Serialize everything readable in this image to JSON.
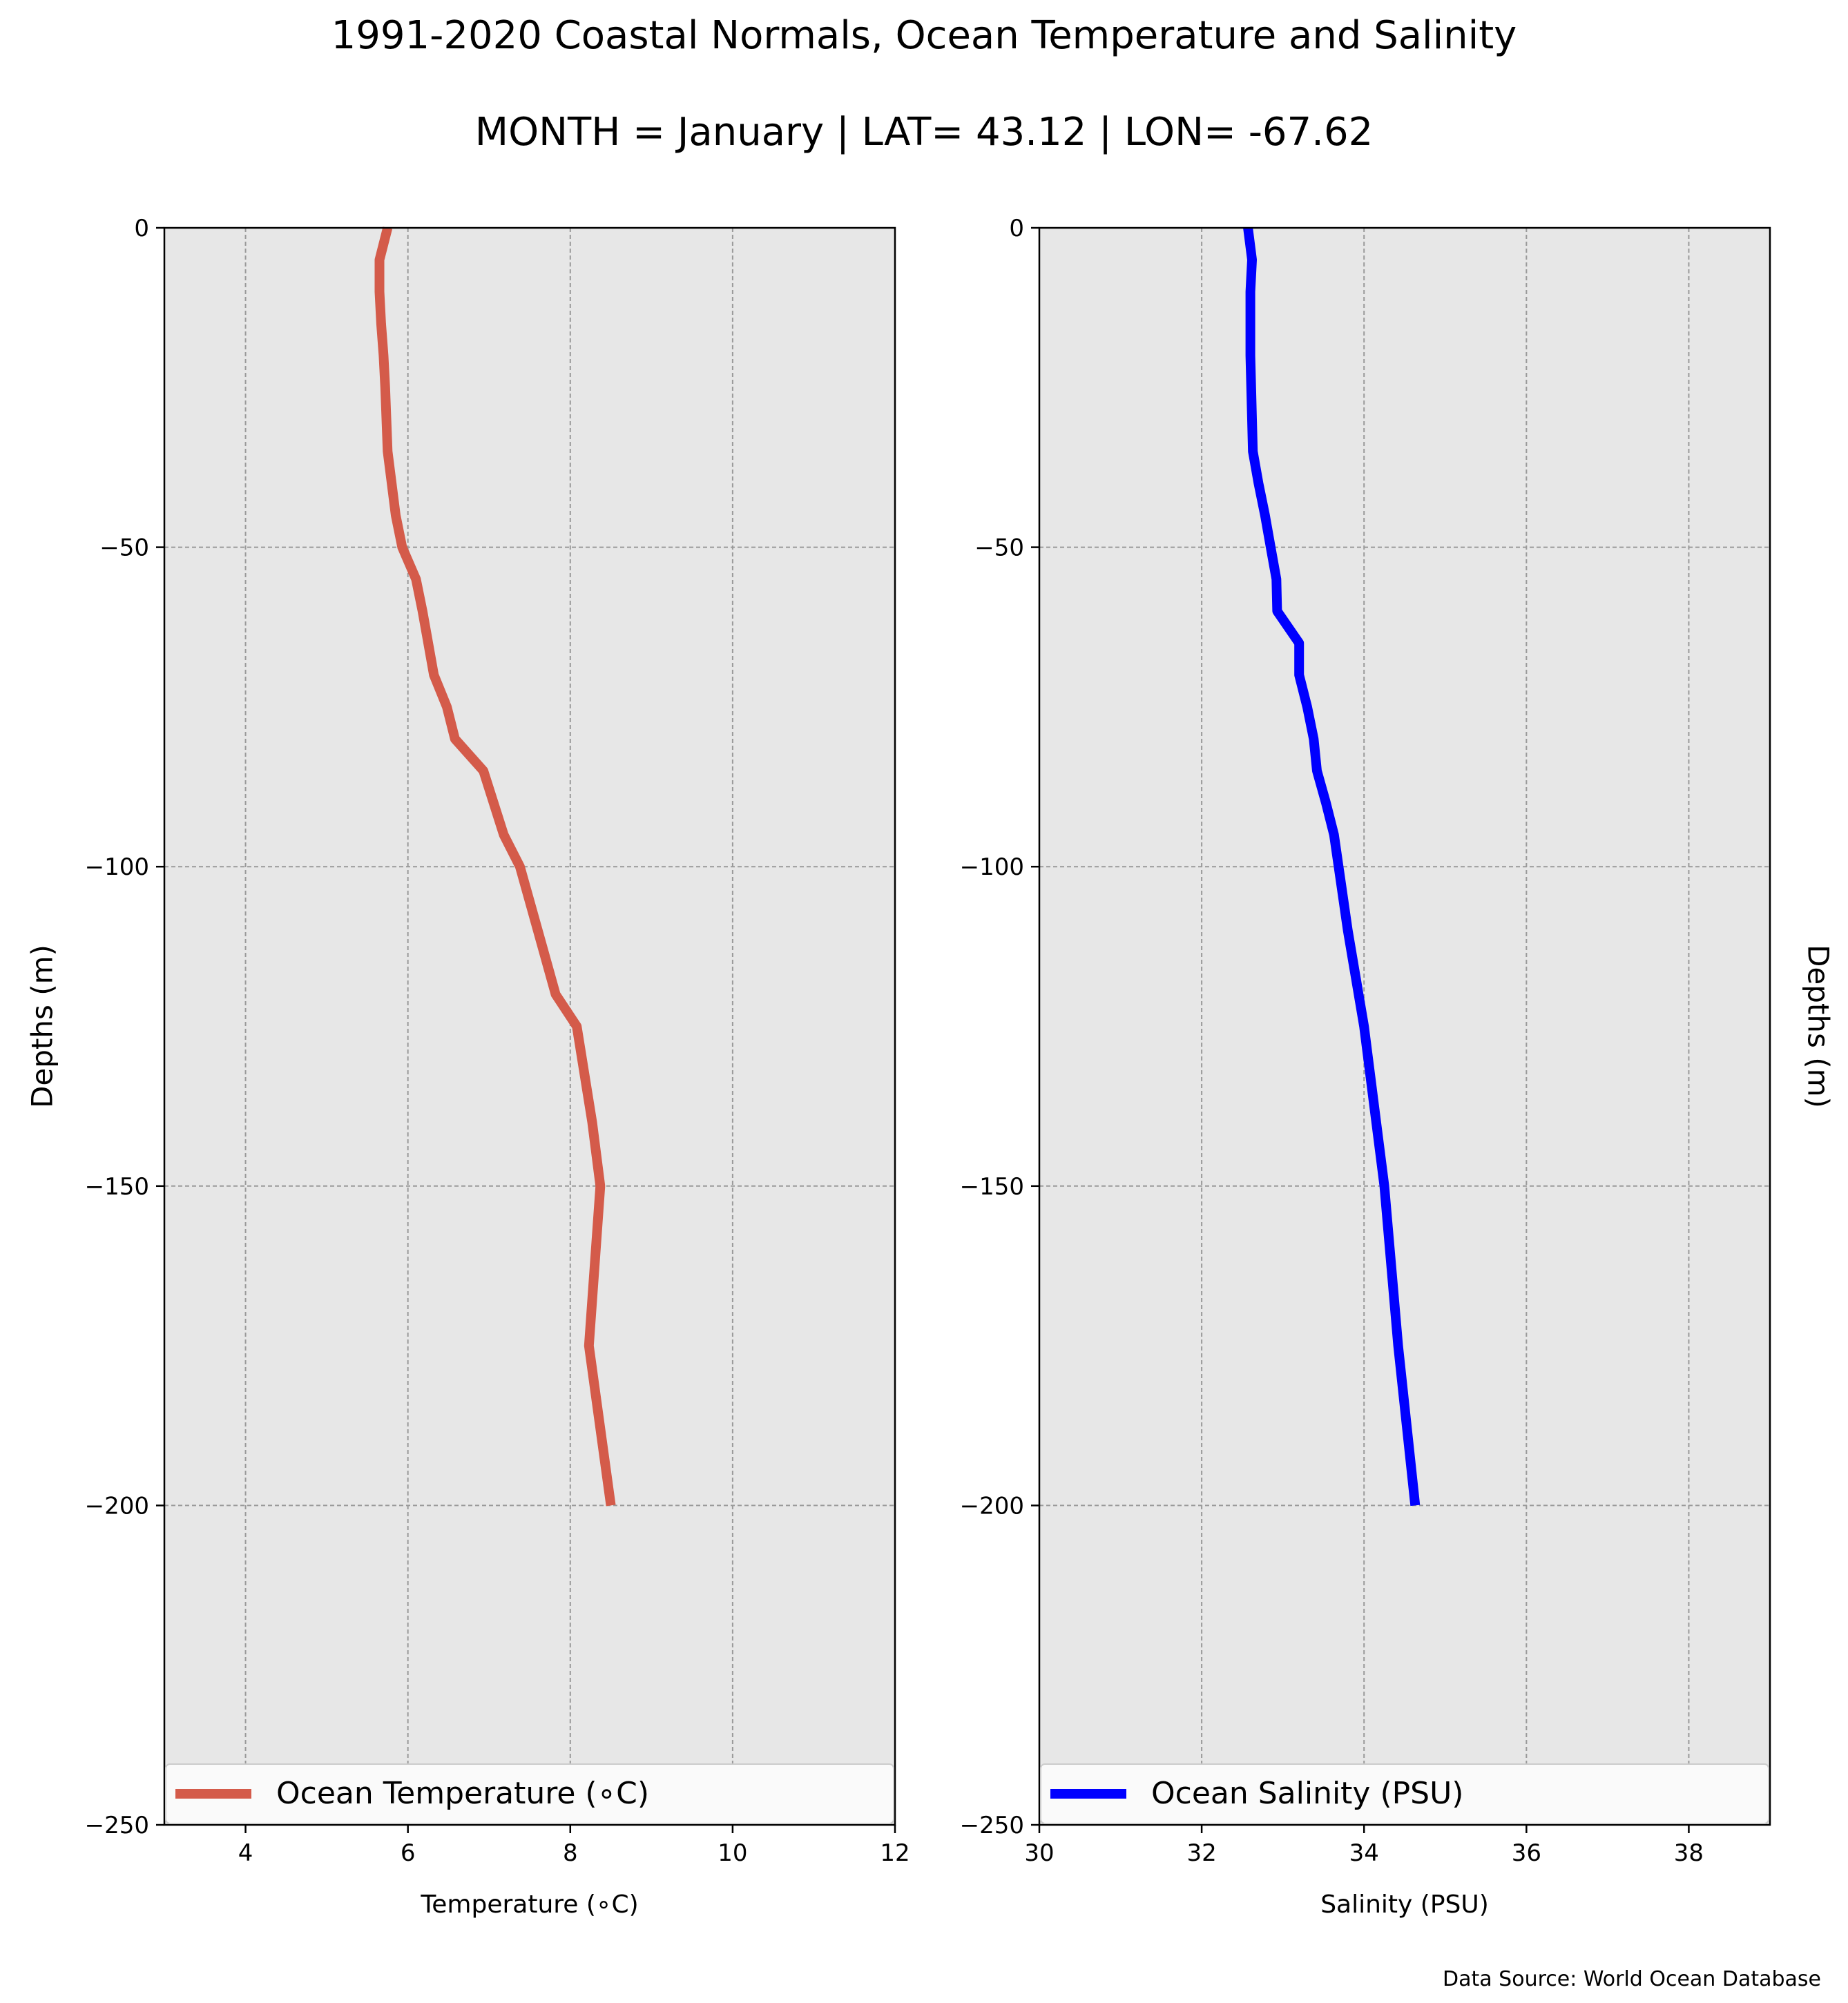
{
  "figure": {
    "title": "1991-2020 Coastal Normals, Ocean Temperature and Salinity",
    "subtitle": "MONTH = January | LAT= 43.12 | LON= -67.62",
    "source": "Data Source: World Ocean Database"
  },
  "chart_data": [
    {
      "type": "line",
      "xlabel": "Temperature (∘C)",
      "ylabel": "Depths (m)",
      "xlim": [
        3,
        12
      ],
      "ylim": [
        -250,
        0
      ],
      "xticks": [
        4,
        6,
        8,
        10,
        12
      ],
      "yticks": [
        0,
        -50,
        -100,
        -150,
        -200,
        -250
      ],
      "grid": true,
      "background": "#e7e7e7",
      "legend_loc": "lower center",
      "series": [
        {
          "name": "Ocean Temperature (∘C)",
          "color": "#d45b4a",
          "x": [
            5.75,
            5.65,
            5.65,
            5.67,
            5.7,
            5.72,
            5.75,
            5.85,
            5.93,
            6.1,
            6.18,
            6.32,
            6.48,
            6.58,
            6.93,
            7.18,
            7.38,
            7.6,
            7.82,
            8.08,
            8.27,
            8.37,
            8.23,
            8.5
          ],
          "y": [
            0,
            -5,
            -10,
            -15,
            -20,
            -25,
            -35,
            -45,
            -50,
            -55,
            -60,
            -70,
            -75,
            -80,
            -85,
            -95,
            -100,
            -110,
            -120,
            -125,
            -140,
            -150,
            -175,
            -200
          ]
        }
      ]
    },
    {
      "type": "line",
      "xlabel": "Salinity (PSU)",
      "ylabel": "Depths (m)",
      "xlim": [
        30,
        39
      ],
      "ylim": [
        -250,
        0
      ],
      "xticks": [
        30,
        32,
        34,
        36,
        38
      ],
      "yticks": [
        0,
        -50,
        -100,
        -150,
        -200,
        -250
      ],
      "grid": true,
      "background": "#e7e7e7",
      "legend_loc": "lower center",
      "series": [
        {
          "name": "Ocean Salinity (PSU)",
          "color": "#0000ff",
          "x": [
            32.57,
            32.62,
            32.6,
            32.6,
            32.61,
            32.62,
            32.63,
            32.7,
            32.78,
            32.85,
            32.92,
            32.93,
            33.2,
            33.2,
            33.3,
            33.38,
            33.42,
            33.53,
            33.63,
            33.8,
            34.0,
            34.25,
            34.42,
            34.63
          ],
          "y": [
            0,
            -5,
            -10,
            -20,
            -25,
            -30,
            -35,
            -40,
            -45,
            -50,
            -55,
            -60,
            -65,
            -70,
            -75,
            -80,
            -85,
            -90,
            -95,
            -110,
            -125,
            -150,
            -175,
            -200
          ]
        }
      ]
    }
  ]
}
